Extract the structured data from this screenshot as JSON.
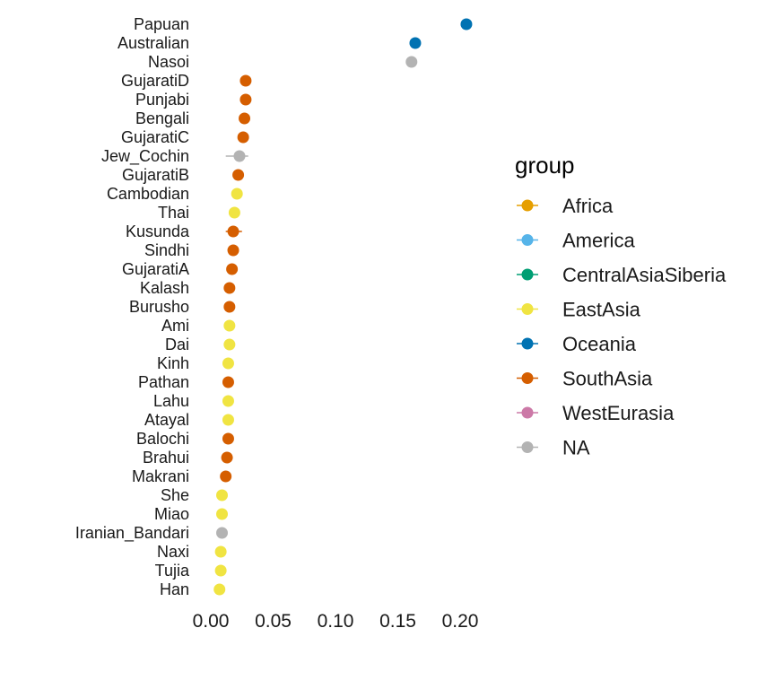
{
  "chart_data": {
    "type": "scatter",
    "title": "",
    "xlabel": "",
    "ylabel": "",
    "xlim": [
      0,
      0.21
    ],
    "x_ticks": [
      "0.00",
      "0.05",
      "0.10",
      "0.15",
      "0.20"
    ],
    "x_tick_values": [
      0,
      0.05,
      0.1,
      0.15,
      0.2
    ],
    "grid": false,
    "legend": {
      "title": "group",
      "placement": "right",
      "entries": [
        {
          "name": "Africa",
          "color": "#E69F00"
        },
        {
          "name": "America",
          "color": "#56B4E9"
        },
        {
          "name": "CentralAsiaSiberia",
          "color": "#009E73"
        },
        {
          "name": "EastAsia",
          "color": "#F0E442"
        },
        {
          "name": "Oceania",
          "color": "#0072B2"
        },
        {
          "name": "SouthAsia",
          "color": "#D55E00"
        },
        {
          "name": "WestEurasia",
          "color": "#CC79A7"
        },
        {
          "name": "NA",
          "color": "#B3B3B3"
        }
      ]
    },
    "points": [
      {
        "label": "Papuan",
        "value": 0.205,
        "group": "Oceania"
      },
      {
        "label": "Australian",
        "value": 0.164,
        "group": "Oceania"
      },
      {
        "label": "Nasoi",
        "value": 0.161,
        "group": "NA"
      },
      {
        "label": "GujaratiD",
        "value": 0.028,
        "group": "SouthAsia"
      },
      {
        "label": "Punjabi",
        "value": 0.028,
        "group": "SouthAsia"
      },
      {
        "label": "Bengali",
        "value": 0.027,
        "group": "SouthAsia"
      },
      {
        "label": "GujaratiC",
        "value": 0.026,
        "group": "SouthAsia"
      },
      {
        "label": "Jew_Cochin",
        "value": 0.023,
        "group": "NA",
        "error": [
          0.012,
          0.03
        ]
      },
      {
        "label": "GujaratiB",
        "value": 0.022,
        "group": "SouthAsia"
      },
      {
        "label": "Cambodian",
        "value": 0.021,
        "group": "EastAsia"
      },
      {
        "label": "Thai",
        "value": 0.019,
        "group": "EastAsia"
      },
      {
        "label": "Kusunda",
        "value": 0.018,
        "group": "SouthAsia",
        "error": [
          0.012,
          0.025
        ]
      },
      {
        "label": "Sindhi",
        "value": 0.018,
        "group": "SouthAsia"
      },
      {
        "label": "GujaratiA",
        "value": 0.017,
        "group": "SouthAsia"
      },
      {
        "label": "Kalash",
        "value": 0.015,
        "group": "SouthAsia"
      },
      {
        "label": "Burusho",
        "value": 0.015,
        "group": "SouthAsia"
      },
      {
        "label": "Ami",
        "value": 0.015,
        "group": "EastAsia"
      },
      {
        "label": "Dai",
        "value": 0.015,
        "group": "EastAsia"
      },
      {
        "label": "Kinh",
        "value": 0.014,
        "group": "EastAsia"
      },
      {
        "label": "Pathan",
        "value": 0.014,
        "group": "SouthAsia"
      },
      {
        "label": "Lahu",
        "value": 0.014,
        "group": "EastAsia"
      },
      {
        "label": "Atayal",
        "value": 0.014,
        "group": "EastAsia"
      },
      {
        "label": "Balochi",
        "value": 0.014,
        "group": "SouthAsia"
      },
      {
        "label": "Brahui",
        "value": 0.013,
        "group": "SouthAsia"
      },
      {
        "label": "Makrani",
        "value": 0.012,
        "group": "SouthAsia"
      },
      {
        "label": "She",
        "value": 0.009,
        "group": "EastAsia"
      },
      {
        "label": "Miao",
        "value": 0.009,
        "group": "EastAsia"
      },
      {
        "label": "Iranian_Bandari",
        "value": 0.009,
        "group": "NA"
      },
      {
        "label": "Naxi",
        "value": 0.008,
        "group": "EastAsia"
      },
      {
        "label": "Tujia",
        "value": 0.008,
        "group": "EastAsia"
      },
      {
        "label": "Han",
        "value": 0.007,
        "group": "EastAsia"
      }
    ]
  }
}
